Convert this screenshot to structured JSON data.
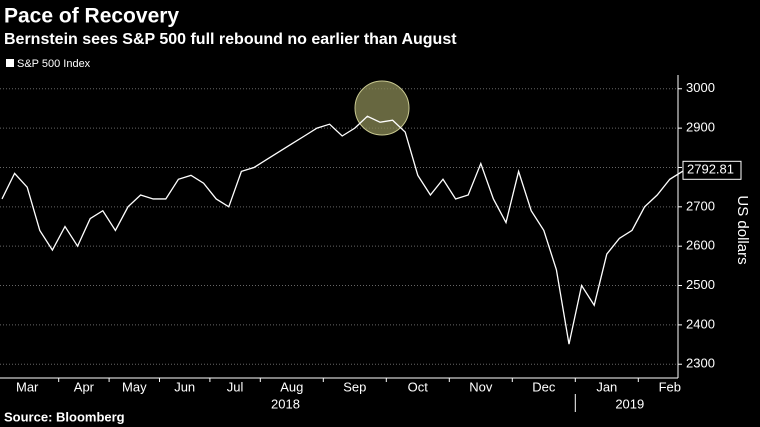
{
  "chart_data": {
    "type": "line",
    "title": "Pace of Recovery",
    "subtitle": "Bernstein sees S&P 500 full rebound no earlier than August",
    "source": "Source: Bloomberg",
    "y_label": "US dollars",
    "ylim": [
      2265,
      3035
    ],
    "yticks": [
      2300,
      2400,
      2500,
      2600,
      2700,
      2800,
      2900,
      3000
    ],
    "grid": true,
    "x": [
      "2018-03",
      "2018-03",
      "2018-03",
      "2018-03",
      "2018-03",
      "2018-04",
      "2018-04",
      "2018-04",
      "2018-04",
      "2018-05",
      "2018-05",
      "2018-05",
      "2018-05",
      "2018-06",
      "2018-06",
      "2018-06",
      "2018-06",
      "2018-07",
      "2018-07",
      "2018-07",
      "2018-07",
      "2018-08",
      "2018-08",
      "2018-08",
      "2018-08",
      "2018-08",
      "2018-09",
      "2018-09",
      "2018-09",
      "2018-09",
      "2018-09",
      "2018-10",
      "2018-10",
      "2018-10",
      "2018-10",
      "2018-10",
      "2018-11",
      "2018-11",
      "2018-11",
      "2018-11",
      "2018-11",
      "2018-12",
      "2018-12",
      "2018-12",
      "2018-12",
      "2018-12",
      "2019-01",
      "2019-01",
      "2019-01",
      "2019-01",
      "2019-01",
      "2019-02",
      "2019-02",
      "2019-02",
      "2019-02",
      "2019-02"
    ],
    "xticks": [
      {
        "value": "2018-03",
        "label": "Mar"
      },
      {
        "value": "2018-04",
        "label": "Apr"
      },
      {
        "value": "2018-05",
        "label": "May"
      },
      {
        "value": "2018-06",
        "label": "Jun"
      },
      {
        "value": "2018-07",
        "label": "Jul"
      },
      {
        "value": "2018-08",
        "label": "Aug"
      },
      {
        "value": "2018-09",
        "label": "Sep"
      },
      {
        "value": "2018-10",
        "label": "Oct"
      },
      {
        "value": "2018-11",
        "label": "Nov"
      },
      {
        "value": "2018-12",
        "label": "Dec"
      },
      {
        "value": "2019-01",
        "label": "Jan"
      },
      {
        "value": "2019-02",
        "label": "Feb"
      }
    ],
    "years": [
      "2018",
      "2019"
    ],
    "series": [
      {
        "name": "S&P 500 Index",
        "color": "#ffffff",
        "values": [
          2720,
          2785,
          2750,
          2640,
          2590,
          2650,
          2600,
          2670,
          2690,
          2640,
          2700,
          2730,
          2720,
          2720,
          2770,
          2780,
          2760,
          2720,
          2700,
          2790,
          2800,
          2820,
          2840,
          2860,
          2880,
          2900,
          2910,
          2880,
          2900,
          2930,
          2915,
          2920,
          2890,
          2780,
          2730,
          2770,
          2720,
          2730,
          2810,
          2720,
          2660,
          2790,
          2690,
          2640,
          2540,
          2351,
          2500,
          2450,
          2580,
          2620,
          2640,
          2700,
          2730,
          2770,
          2790,
          2792.81
        ],
        "value_labels": [
          null,
          null,
          null,
          null,
          null,
          null,
          null,
          null,
          null,
          null,
          null,
          null,
          null,
          null,
          null,
          null,
          null,
          null,
          null,
          null,
          null,
          null,
          null,
          null,
          null,
          null,
          null,
          null,
          null,
          null,
          null,
          null,
          null,
          null,
          null,
          null,
          null,
          null,
          null,
          null,
          null,
          null,
          null,
          null,
          null,
          null,
          null,
          null,
          null,
          null,
          null,
          null,
          null,
          null,
          null,
          "2792.81"
        ]
      }
    ]
  }
}
